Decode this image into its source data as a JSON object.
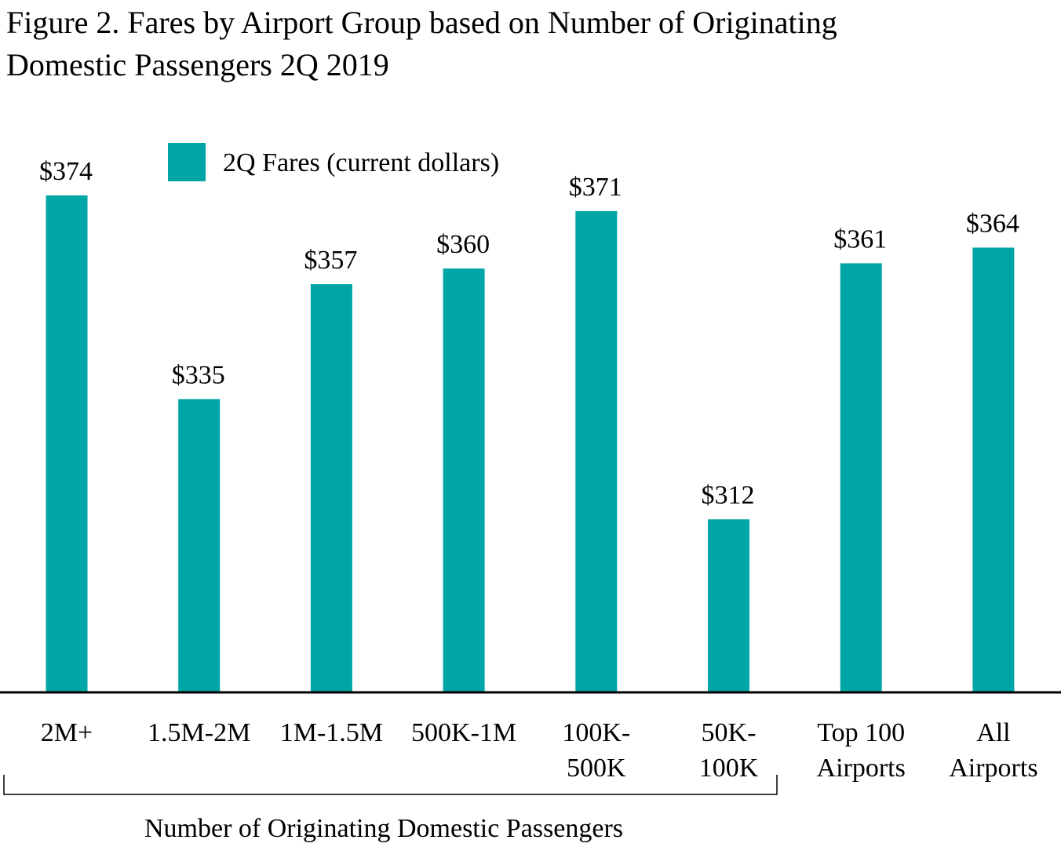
{
  "chart_data": {
    "type": "bar",
    "title_line1": "Figure 2. Fares by Airport Group based on Number of Originating",
    "title_line2": "Domestic Passengers 2Q 2019",
    "categories": [
      [
        "2M+"
      ],
      [
        "1.5M-2M"
      ],
      [
        "1M-1.5M"
      ],
      [
        "500K-1M"
      ],
      [
        "100K-",
        "500K"
      ],
      [
        "50K-",
        "100K"
      ],
      [
        "Top 100",
        "Airports"
      ],
      [
        "All",
        "Airports"
      ]
    ],
    "series": [
      {
        "name": "2Q Fares (current dollars)",
        "color": "#00A5A5",
        "values": [
          374,
          335,
          357,
          360,
          371,
          312,
          361,
          364
        ]
      }
    ],
    "data_labels": [
      "$374",
      "$335",
      "$357",
      "$360",
      "$371",
      "$312",
      "$361",
      "$364"
    ],
    "group_label": "Number of Originating Domestic Passengers",
    "xlabel": "",
    "ylabel": "",
    "ylim": [
      279,
      380
    ],
    "grid": false,
    "y_axis_shown": false,
    "legend_placement": "top-left"
  }
}
